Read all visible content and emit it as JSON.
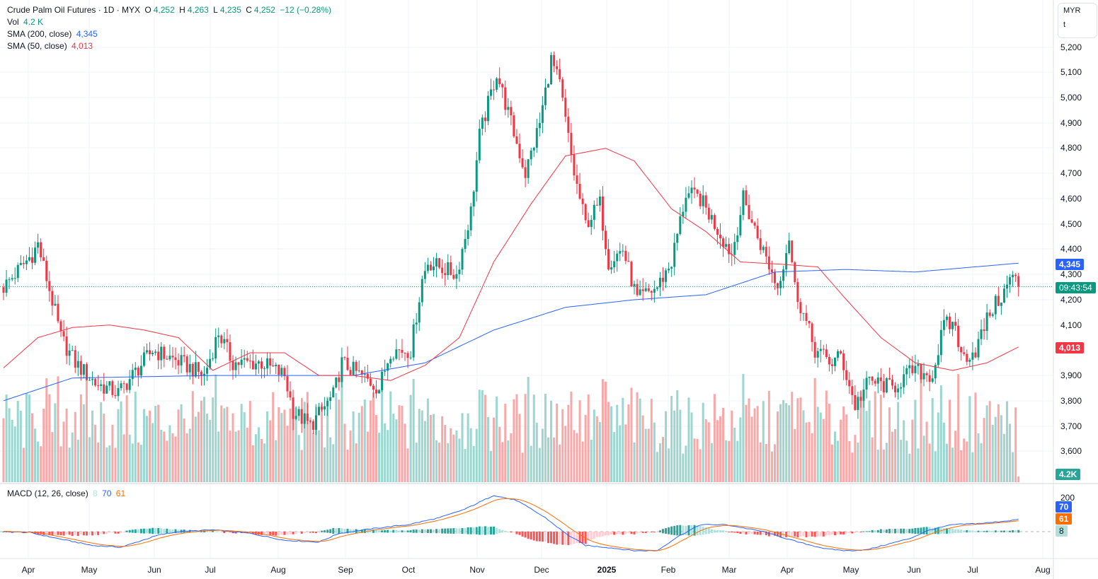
{
  "header": {
    "symbol": "Crude Palm Oil Futures · 1D · MYX",
    "open_label": "O",
    "open": "4,252",
    "high_label": "H",
    "high": "4,263",
    "low_label": "L",
    "low": "4,235",
    "close_label": "C",
    "close": "4,252",
    "change": "−12 (−0.28%)"
  },
  "volume_legend": {
    "label": "Vol",
    "value": "4.2 K"
  },
  "sma200": {
    "label": "SMA (200, close)",
    "value": "4,345"
  },
  "sma50": {
    "label": "SMA (50, close)",
    "value": "4,013"
  },
  "macd_legend": {
    "label": "MACD (12, 26, close)",
    "hist": "8",
    "macd": "70",
    "signal": "61"
  },
  "currency": {
    "code": "MYR",
    "unit": "t"
  },
  "price_axis": [
    "5,200",
    "5,100",
    "5,000",
    "4,900",
    "4,800",
    "4,700",
    "4,600",
    "4,500",
    "4,400",
    "4,300",
    "4,200",
    "4,100",
    "3,900",
    "3,800",
    "3,700",
    "3,600"
  ],
  "badges": {
    "sma200": "4,345",
    "countdown": "09:43:54",
    "sma50": "4,013",
    "volume": "4.2K",
    "macd": "70",
    "signal": "61",
    "hist": "8",
    "macd_axis": "200"
  },
  "time_axis": [
    "Apr",
    "May",
    "Jun",
    "Jul",
    "Aug",
    "Sep",
    "Oct",
    "Nov",
    "Dec",
    "2025",
    "Feb",
    "Mar",
    "Apr",
    "May",
    "Jun",
    "Jul",
    "Aug"
  ],
  "colors": {
    "up": "#089981",
    "down": "#f23645",
    "sma200": "#2962ff",
    "sma50": "#f23645",
    "macd": "#2962ff",
    "signal": "#ff6d00"
  },
  "chart_data": {
    "type": "candlestick",
    "last_price": 4252,
    "price_keypoints": [
      [
        0,
        4250
      ],
      [
        10,
        4380
      ],
      [
        12,
        4420
      ],
      [
        18,
        4150
      ],
      [
        20,
        4050
      ],
      [
        25,
        3950
      ],
      [
        32,
        3870
      ],
      [
        40,
        3830
      ],
      [
        45,
        3900
      ],
      [
        52,
        4000
      ],
      [
        62,
        3950
      ],
      [
        70,
        3900
      ],
      [
        75,
        4070
      ],
      [
        80,
        3950
      ],
      [
        90,
        3950
      ],
      [
        98,
        3900
      ],
      [
        101,
        3760
      ],
      [
        107,
        3700
      ],
      [
        115,
        3820
      ],
      [
        118,
        3950
      ],
      [
        131,
        3850
      ],
      [
        135,
        4000
      ],
      [
        142,
        4000
      ],
      [
        146,
        4280
      ],
      [
        148,
        4350
      ],
      [
        158,
        4300
      ],
      [
        163,
        4550
      ],
      [
        166,
        4850
      ],
      [
        172,
        5100
      ],
      [
        177,
        4900
      ],
      [
        182,
        4700
      ],
      [
        187,
        4900
      ],
      [
        191,
        5150
      ],
      [
        194,
        5050
      ],
      [
        199,
        4700
      ],
      [
        203,
        4500
      ],
      [
        208,
        4580
      ],
      [
        211,
        4350
      ],
      [
        216,
        4400
      ],
      [
        221,
        4200
      ],
      [
        228,
        4250
      ],
      [
        233,
        4350
      ],
      [
        238,
        4620
      ],
      [
        243,
        4600
      ],
      [
        248,
        4500
      ],
      [
        254,
        4380
      ],
      [
        258,
        4600
      ],
      [
        263,
        4450
      ],
      [
        270,
        4250
      ],
      [
        274,
        4450
      ],
      [
        276,
        4250
      ],
      [
        283,
        4000
      ],
      [
        289,
        3950
      ],
      [
        292,
        3980
      ],
      [
        297,
        3780
      ],
      [
        302,
        3880
      ],
      [
        310,
        3850
      ],
      [
        317,
        3920
      ],
      [
        324,
        3900
      ],
      [
        328,
        4100
      ],
      [
        332,
        4100
      ],
      [
        334,
        3970
      ],
      [
        339,
        4000
      ],
      [
        344,
        4150
      ],
      [
        349,
        4230
      ],
      [
        352,
        4300
      ],
      [
        354,
        4252
      ]
    ],
    "sma200_keypoints": [
      [
        0,
        3800
      ],
      [
        24,
        3890
      ],
      [
        73,
        3900
      ],
      [
        122,
        3900
      ],
      [
        147,
        3950
      ],
      [
        171,
        4080
      ],
      [
        196,
        4170
      ],
      [
        220,
        4200
      ],
      [
        245,
        4220
      ],
      [
        269,
        4310
      ],
      [
        294,
        4320
      ],
      [
        318,
        4310
      ],
      [
        354,
        4345
      ]
    ],
    "sma50_keypoints": [
      [
        0,
        3930
      ],
      [
        12,
        4050
      ],
      [
        24,
        4090
      ],
      [
        37,
        4100
      ],
      [
        49,
        4080
      ],
      [
        61,
        4050
      ],
      [
        73,
        3920
      ],
      [
        86,
        3990
      ],
      [
        98,
        3990
      ],
      [
        110,
        3900
      ],
      [
        122,
        3900
      ],
      [
        135,
        3880
      ],
      [
        147,
        3940
      ],
      [
        159,
        4050
      ],
      [
        171,
        4350
      ],
      [
        184,
        4580
      ],
      [
        196,
        4770
      ],
      [
        210,
        4800
      ],
      [
        220,
        4750
      ],
      [
        233,
        4560
      ],
      [
        245,
        4470
      ],
      [
        257,
        4350
      ],
      [
        272,
        4340
      ],
      [
        284,
        4330
      ],
      [
        294,
        4200
      ],
      [
        306,
        4050
      ],
      [
        318,
        3950
      ],
      [
        331,
        3920
      ],
      [
        343,
        3950
      ],
      [
        354,
        4013
      ]
    ],
    "macd_keypoints": [
      [
        0,
        0
      ],
      [
        9,
        -5
      ],
      [
        19,
        -40
      ],
      [
        31,
        -80
      ],
      [
        41,
        -90
      ],
      [
        54,
        -20
      ],
      [
        61,
        0
      ],
      [
        73,
        10
      ],
      [
        86,
        -10
      ],
      [
        98,
        -50
      ],
      [
        110,
        -60
      ],
      [
        117,
        -10
      ],
      [
        130,
        20
      ],
      [
        141,
        40
      ],
      [
        152,
        80
      ],
      [
        161,
        130
      ],
      [
        171,
        210
      ],
      [
        179,
        180
      ],
      [
        189,
        80
      ],
      [
        196,
        -10
      ],
      [
        203,
        -80
      ],
      [
        210,
        -90
      ],
      [
        220,
        -110
      ],
      [
        228,
        -110
      ],
      [
        235,
        -30
      ],
      [
        243,
        40
      ],
      [
        252,
        40
      ],
      [
        265,
        0
      ],
      [
        269,
        -20
      ],
      [
        277,
        -60
      ],
      [
        287,
        -100
      ],
      [
        294,
        -110
      ],
      [
        301,
        -105
      ],
      [
        309,
        -70
      ],
      [
        316,
        -40
      ],
      [
        323,
        10
      ],
      [
        331,
        40
      ],
      [
        343,
        50
      ],
      [
        354,
        70
      ]
    ],
    "price_range": [
      3550,
      5230
    ],
    "macd_range": [
      -160,
      230
    ]
  }
}
